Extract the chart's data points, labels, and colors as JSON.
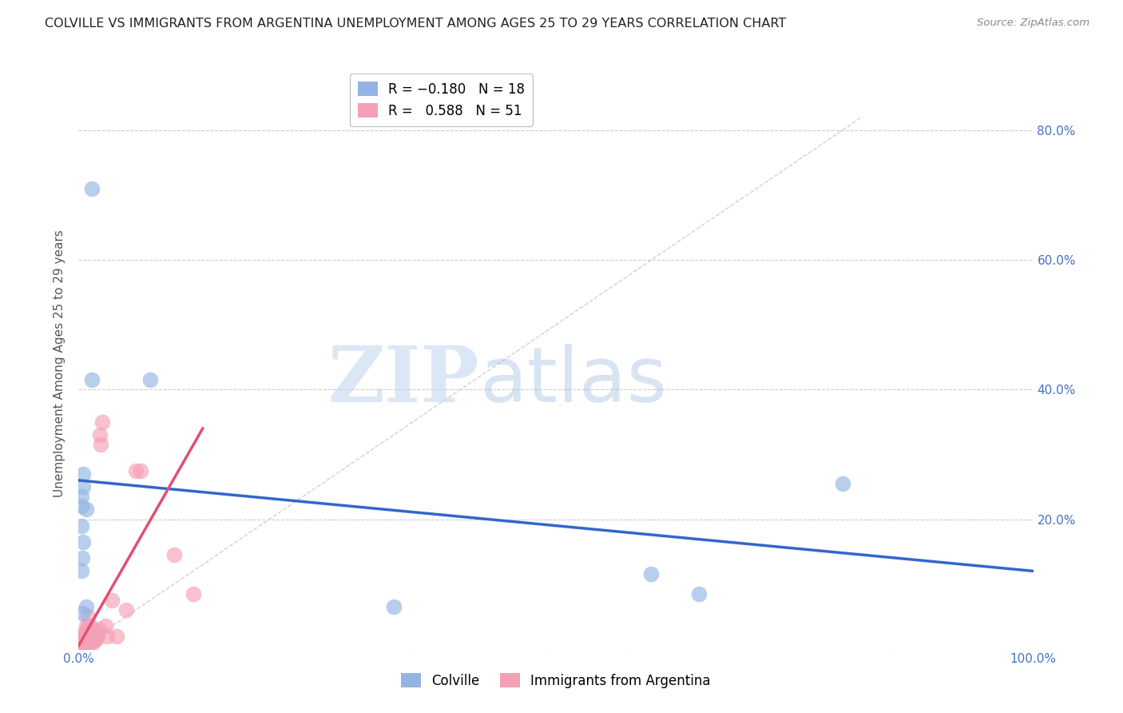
{
  "title": "COLVILLE VS IMMIGRANTS FROM ARGENTINA UNEMPLOYMENT AMONG AGES 25 TO 29 YEARS CORRELATION CHART",
  "source": "Source: ZipAtlas.com",
  "ylabel": "Unemployment Among Ages 25 to 29 years",
  "xlim": [
    0.0,
    1.0
  ],
  "ylim": [
    0.0,
    0.88
  ],
  "colville_color": "#92b4e3",
  "argentina_color": "#f4a0b5",
  "colville_R": -0.18,
  "colville_N": 18,
  "argentina_R": 0.588,
  "argentina_N": 51,
  "trendline_colville_color": "#3366cc",
  "trendline_argentina_color": "#e05070",
  "trendline_reference_color": "#c8c8c8",
  "watermark_zip": "ZIP",
  "watermark_atlas": "atlas",
  "colville_scatter": [
    [
      0.014,
      0.71
    ],
    [
      0.014,
      0.415
    ],
    [
      0.075,
      0.415
    ],
    [
      0.005,
      0.27
    ],
    [
      0.005,
      0.25
    ],
    [
      0.003,
      0.235
    ],
    [
      0.003,
      0.22
    ],
    [
      0.008,
      0.215
    ],
    [
      0.003,
      0.19
    ],
    [
      0.005,
      0.165
    ],
    [
      0.004,
      0.14
    ],
    [
      0.003,
      0.12
    ],
    [
      0.008,
      0.065
    ],
    [
      0.004,
      0.055
    ],
    [
      0.33,
      0.065
    ],
    [
      0.6,
      0.115
    ],
    [
      0.65,
      0.085
    ],
    [
      0.8,
      0.255
    ]
  ],
  "argentina_scatter": [
    [
      0.002,
      0.01
    ],
    [
      0.002,
      0.015
    ],
    [
      0.003,
      0.02
    ],
    [
      0.003,
      0.015
    ],
    [
      0.004,
      0.01
    ],
    [
      0.004,
      0.015
    ],
    [
      0.005,
      0.01
    ],
    [
      0.005,
      0.02
    ],
    [
      0.006,
      0.01
    ],
    [
      0.006,
      0.015
    ],
    [
      0.006,
      0.025
    ],
    [
      0.007,
      0.01
    ],
    [
      0.007,
      0.015
    ],
    [
      0.007,
      0.02
    ],
    [
      0.008,
      0.01
    ],
    [
      0.008,
      0.015
    ],
    [
      0.008,
      0.035
    ],
    [
      0.009,
      0.01
    ],
    [
      0.009,
      0.02
    ],
    [
      0.01,
      0.01
    ],
    [
      0.01,
      0.015
    ],
    [
      0.01,
      0.035
    ],
    [
      0.01,
      0.05
    ],
    [
      0.011,
      0.01
    ],
    [
      0.011,
      0.02
    ],
    [
      0.012,
      0.015
    ],
    [
      0.012,
      0.035
    ],
    [
      0.013,
      0.01
    ],
    [
      0.014,
      0.015
    ],
    [
      0.014,
      0.02
    ],
    [
      0.015,
      0.01
    ],
    [
      0.015,
      0.03
    ],
    [
      0.016,
      0.02
    ],
    [
      0.017,
      0.015
    ],
    [
      0.017,
      0.025
    ],
    [
      0.018,
      0.015
    ],
    [
      0.019,
      0.02
    ],
    [
      0.02,
      0.02
    ],
    [
      0.021,
      0.03
    ],
    [
      0.022,
      0.33
    ],
    [
      0.023,
      0.315
    ],
    [
      0.025,
      0.35
    ],
    [
      0.028,
      0.035
    ],
    [
      0.03,
      0.02
    ],
    [
      0.035,
      0.075
    ],
    [
      0.04,
      0.02
    ],
    [
      0.05,
      0.06
    ],
    [
      0.06,
      0.275
    ],
    [
      0.065,
      0.275
    ],
    [
      0.1,
      0.145
    ],
    [
      0.12,
      0.085
    ]
  ],
  "colville_trend_x": [
    0.0,
    1.0
  ],
  "colville_trend_y": [
    0.26,
    0.12
  ],
  "argentina_trend_x": [
    0.0,
    0.13
  ],
  "argentina_trend_y": [
    0.005,
    0.34
  ],
  "reference_line_x": [
    0.0,
    0.82
  ],
  "reference_line_y": [
    0.0,
    0.82
  ]
}
